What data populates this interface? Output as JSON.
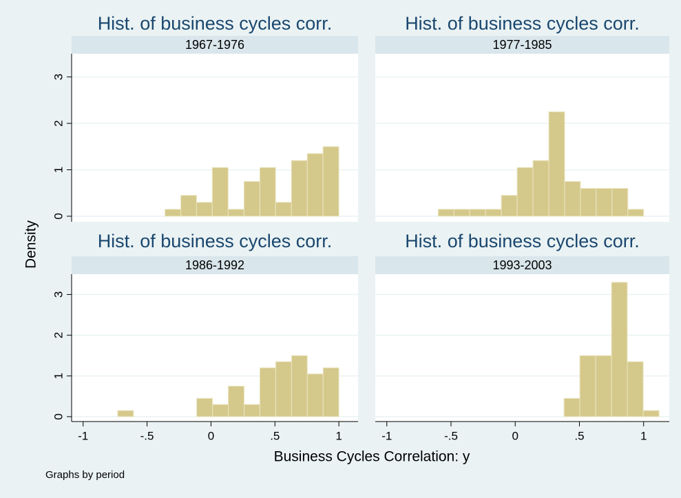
{
  "figure": {
    "ylabel": "Density",
    "xlabel": "Business Cycles Correlation: y",
    "note": "Graphs by period"
  },
  "chart_data": [
    {
      "type": "histogram",
      "title": "Hist. of business cycles corr.",
      "subtitle": "1967-1976",
      "color": "#d4c98b",
      "bins": [
        -0.36,
        -0.236,
        -0.113,
        0.01,
        0.134,
        0.258,
        0.382,
        0.505,
        0.629,
        0.753,
        0.876,
        1.0
      ],
      "values": [
        0.15,
        0.45,
        0.3,
        1.05,
        0.15,
        0.75,
        1.05,
        0.3,
        1.2,
        1.35,
        1.5
      ],
      "xlim": [
        -1.09,
        1.15
      ],
      "ylim": [
        -0.12,
        3.5
      ],
      "yticks": [
        0,
        1,
        2,
        3
      ],
      "grid": true
    },
    {
      "type": "histogram",
      "title": "Hist. of business cycles corr.",
      "subtitle": "1977-1985",
      "color": "#d4c98b",
      "bins": [
        -0.6,
        -0.477,
        -0.354,
        -0.231,
        -0.108,
        0.015,
        0.138,
        0.262,
        0.385,
        0.508,
        0.631,
        0.754,
        0.877,
        1.0
      ],
      "values": [
        0.15,
        0.15,
        0.15,
        0.15,
        0.45,
        1.05,
        1.2,
        2.25,
        0.75,
        0.6,
        0.6,
        0.6,
        0.15
      ],
      "xlim": [
        -1.09,
        1.2
      ],
      "ylim": [
        -0.12,
        3.5
      ],
      "yticks": [
        0,
        1,
        2,
        3
      ],
      "grid": true
    },
    {
      "type": "histogram",
      "title": "Hist. of business cycles corr.",
      "subtitle": "1986-1992",
      "color": "#d4c98b",
      "bins": [
        -0.73,
        -0.606,
        -0.483,
        -0.359,
        -0.236,
        -0.112,
        0.012,
        0.135,
        0.259,
        0.382,
        0.506,
        0.63,
        0.753,
        0.877,
        1.0
      ],
      "values": [
        0.15,
        0,
        0,
        0,
        0,
        0.45,
        0.3,
        0.75,
        0.3,
        1.2,
        1.35,
        1.5,
        1.05,
        1.2
      ],
      "xlim": [
        -1.09,
        1.15
      ],
      "ylim": [
        -0.12,
        3.5
      ],
      "yticks": [
        0,
        1,
        2,
        3
      ],
      "grid": true,
      "xticks": [
        {
          "value": -1,
          "label": "-1"
        },
        {
          "value": -0.5,
          "label": "-.5"
        },
        0,
        {
          "value": 0.5,
          "label": ".5"
        },
        1
      ]
    },
    {
      "type": "histogram",
      "title": "Hist. of business cycles corr.",
      "subtitle": "1993-2003",
      "color": "#d4c98b",
      "bins": [
        0.38,
        0.503,
        0.627,
        0.75,
        0.873,
        0.997,
        1.12
      ],
      "values": [
        0.45,
        1.5,
        1.5,
        3.3,
        1.35,
        0.15
      ],
      "xlim": [
        -1.09,
        1.2
      ],
      "ylim": [
        -0.12,
        3.5
      ],
      "yticks": [
        0,
        1,
        2,
        3
      ],
      "grid": true,
      "xticks": [
        {
          "value": -1,
          "label": "-1"
        },
        {
          "value": -0.5,
          "label": "-.5"
        },
        0,
        {
          "value": 0.5,
          "label": ".5"
        },
        1
      ]
    }
  ]
}
